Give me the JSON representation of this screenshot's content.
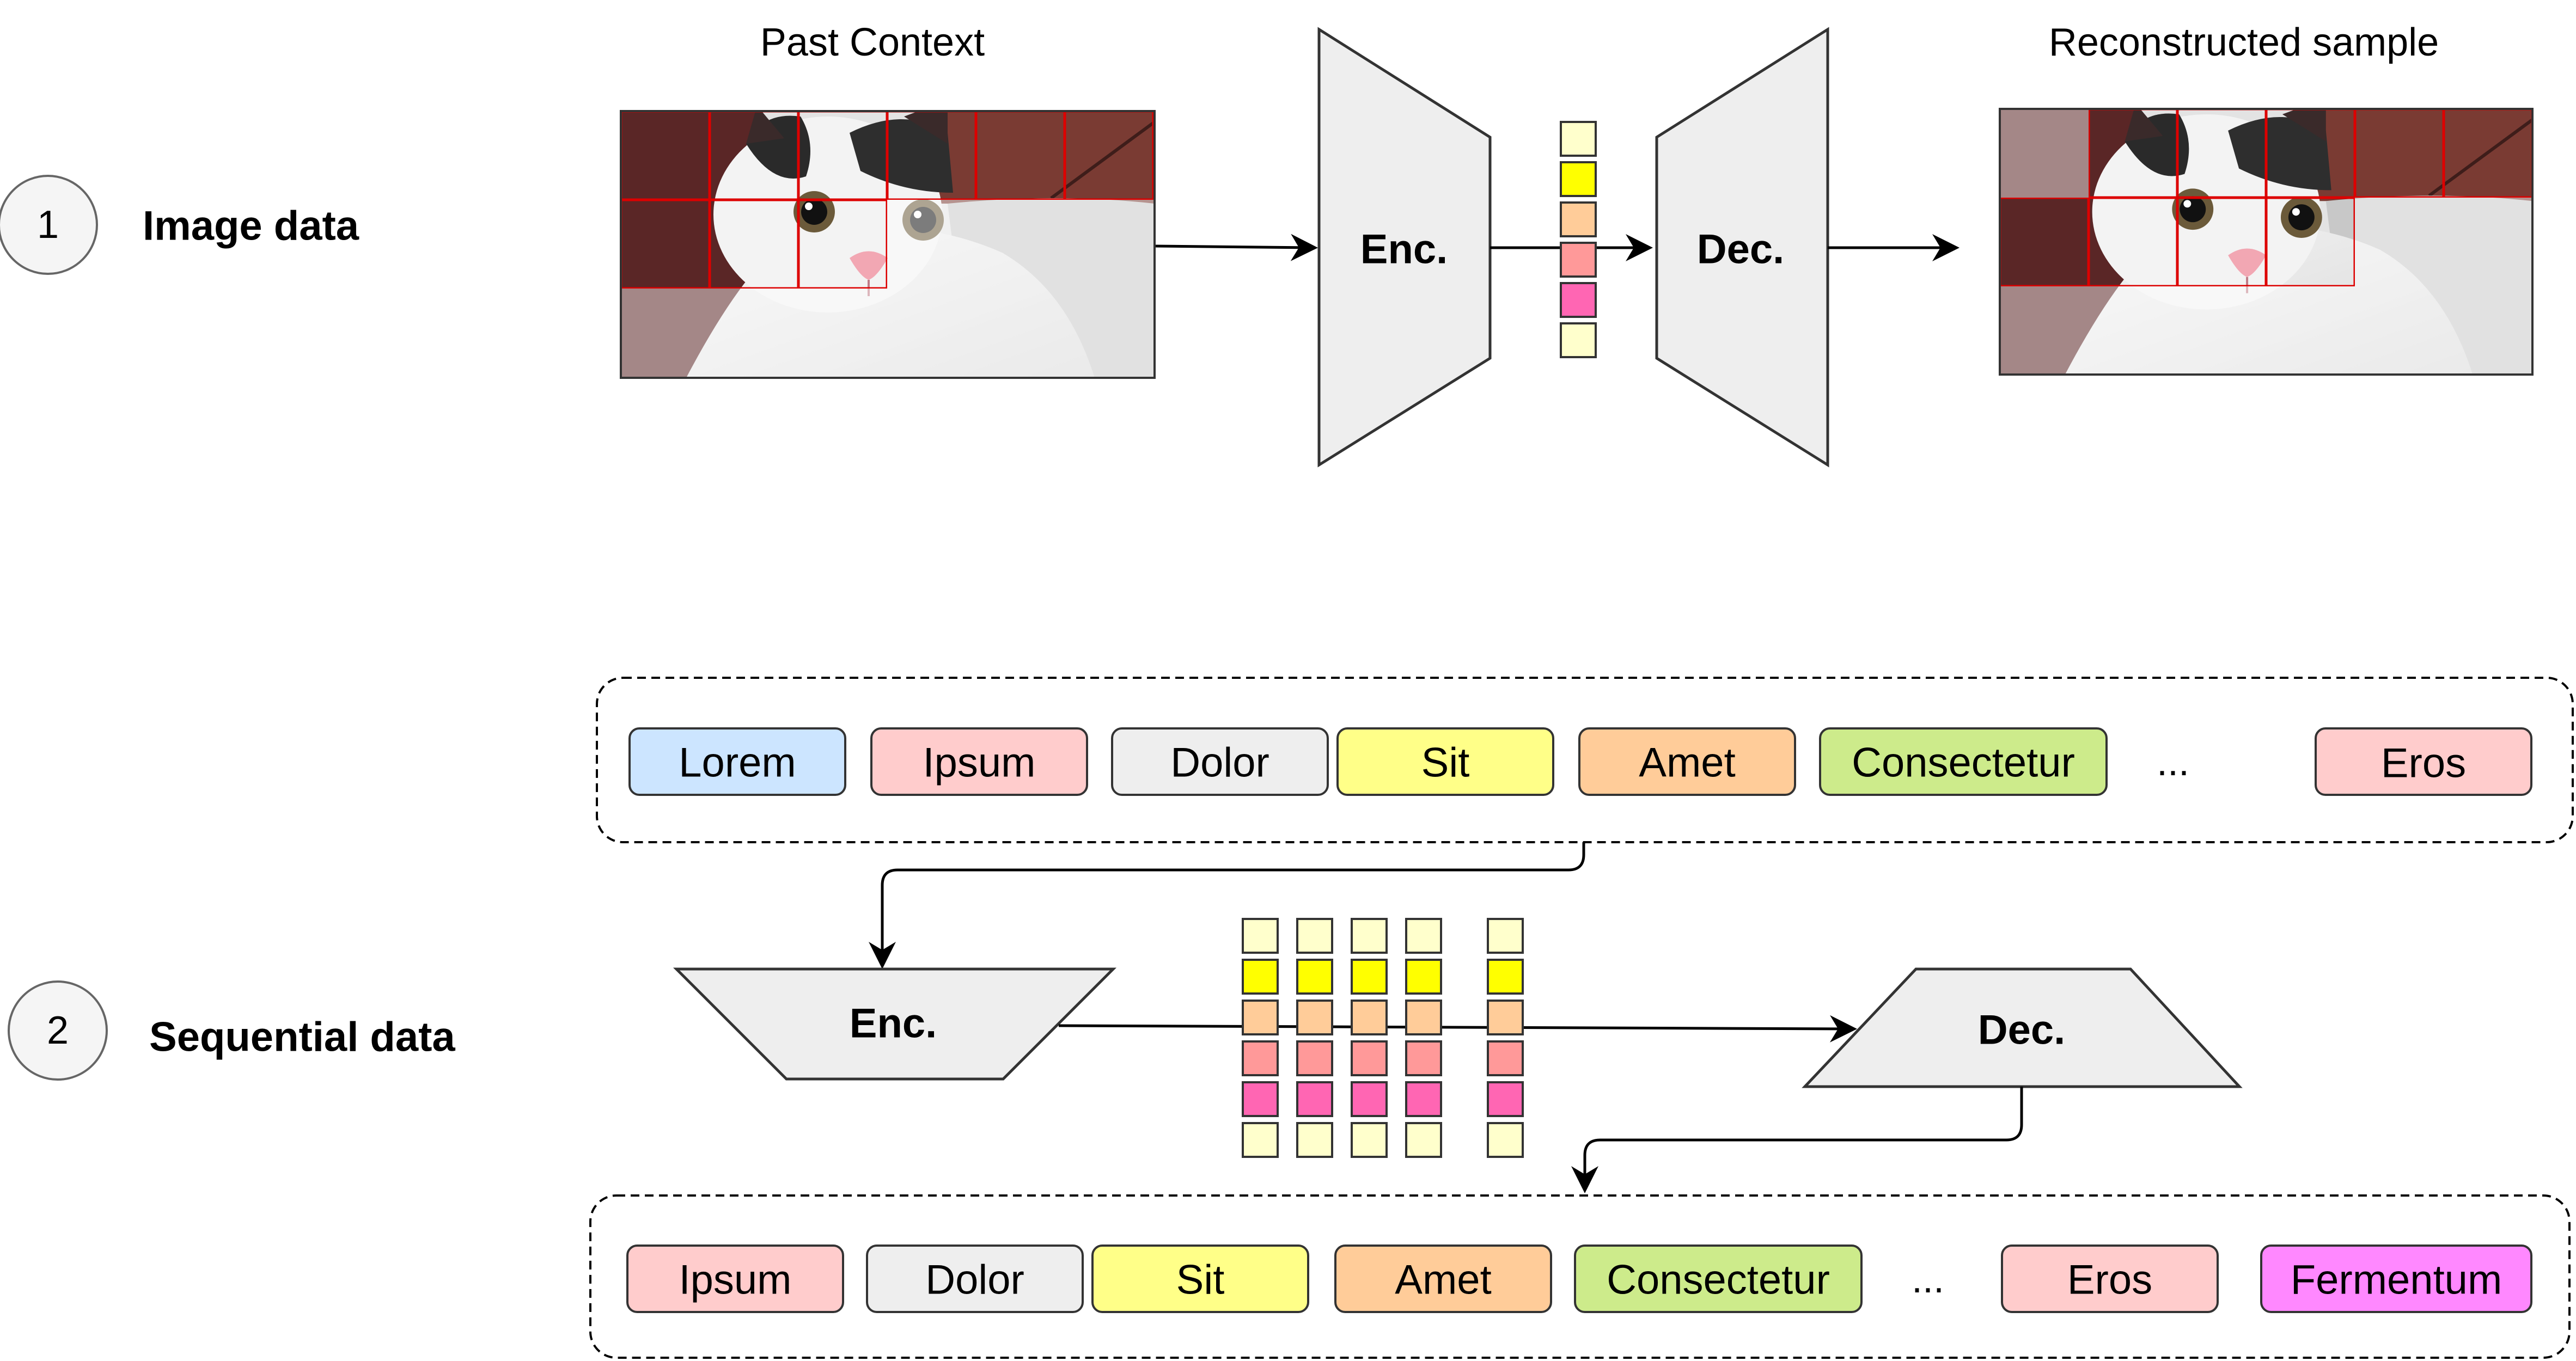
{
  "section_image": {
    "number": "1",
    "label": "Image data",
    "past_context_title": "Past Context",
    "reconstructed_title": "Reconstructed sample",
    "encoder_label": "Enc.",
    "decoder_label": "Dec.",
    "latent_colors": [
      "#ffffcc",
      "#ffff00",
      "#ffcc99",
      "#ff9999",
      "#ff66b3",
      "#ffffcc"
    ]
  },
  "section_seq": {
    "number": "2",
    "label": "Sequential data",
    "encoder_label": "Enc.",
    "decoder_label": "Dec.",
    "input_tokens": [
      {
        "text": "Lorem",
        "color": "#cce5ff"
      },
      {
        "text": "Ipsum",
        "color": "#ffcccc"
      },
      {
        "text": "Dolor",
        "color": "#eeeeee"
      },
      {
        "text": "Sit",
        "color": "#ffff88"
      },
      {
        "text": "Amet",
        "color": "#ffcc99"
      },
      {
        "text": "Consectetur",
        "color": "#cdeb8b"
      }
    ],
    "input_ellipsis": "...",
    "input_last_token": {
      "text": "Eros",
      "color": "#ffcccc"
    },
    "output_tokens": [
      {
        "text": "Ipsum",
        "color": "#ffcccc"
      },
      {
        "text": "Dolor",
        "color": "#eeeeee"
      },
      {
        "text": "Sit",
        "color": "#ffff88"
      },
      {
        "text": "Amet",
        "color": "#ffcc99"
      },
      {
        "text": "Consectetur",
        "color": "#cdeb8b"
      }
    ],
    "output_ellipsis": "...",
    "output_last_tokens": [
      {
        "text": "Eros",
        "color": "#ffcccc"
      },
      {
        "text": "Fermentum",
        "color": "#ff88ff"
      }
    ],
    "latent_colors": [
      "#ffffcc",
      "#ffff00",
      "#ffcc99",
      "#ff9999",
      "#ff66b3",
      "#ffffcc"
    ]
  }
}
